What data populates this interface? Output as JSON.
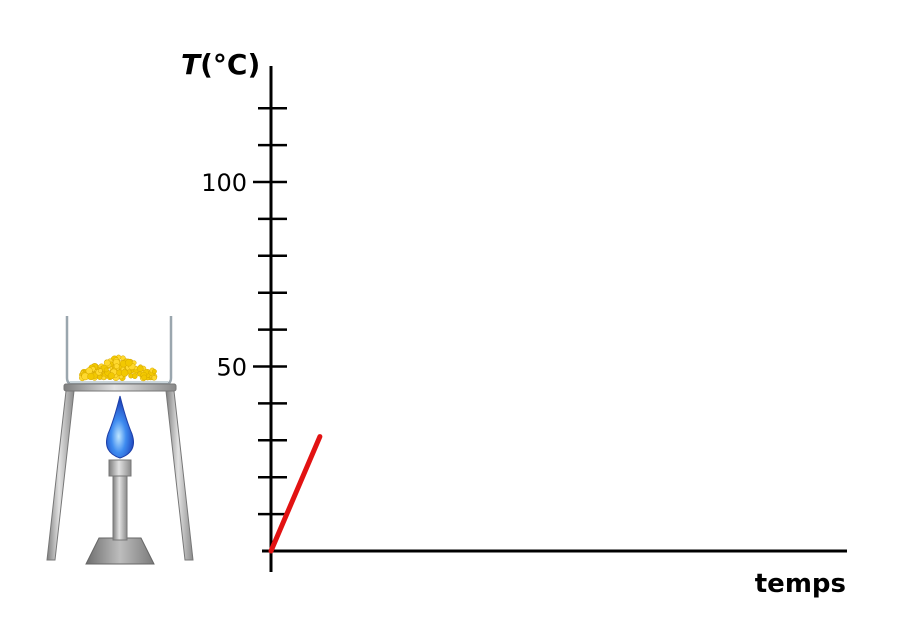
{
  "chart_data": {
    "type": "line",
    "title": "",
    "xlabel": "temps",
    "ylabel_italic": "T",
    "ylabel_rest": "(°C)",
    "ylim": [
      0,
      126
    ],
    "xlim": [
      0,
      100
    ],
    "y_major_ticks": [
      50,
      100
    ],
    "y_tick_labels": [
      "50",
      "100"
    ],
    "y_minor_step": 10,
    "grid": false,
    "series": [
      {
        "color": "#e21212",
        "x": [
          0,
          8.5
        ],
        "y": [
          0,
          31
        ]
      }
    ]
  },
  "illustration": {
    "substance_color": "#f2c800",
    "flame_color": "#2a6ae0",
    "stand_color": "#a8a8a8"
  }
}
